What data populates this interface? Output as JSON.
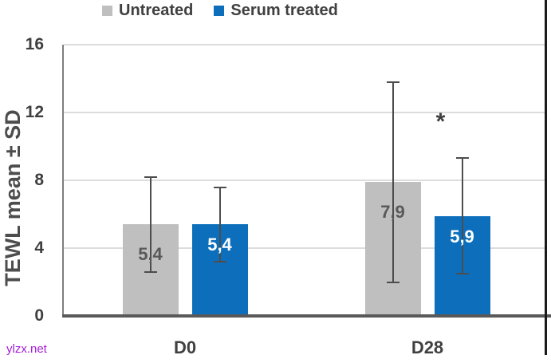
{
  "watermark": {
    "text": "ylzx.net"
  },
  "colors": {
    "untreated_bar": "#BFBFBF",
    "treated_bar": "#0D6FBC",
    "grid": "#DCDCDC",
    "axis_line": "#595959",
    "y_axis_line": "#7F7F7F",
    "error_bar": "#4D4D4D",
    "text_dark": "#404040",
    "value_label_on_gray": "#595959",
    "value_label_on_blue": "#FFFFFF",
    "watermark": "#A41DD6",
    "frame_line": "#1A1A1A"
  },
  "chart_data": {
    "type": "bar",
    "title": "",
    "xlabel": "",
    "ylabel": "TEWL mean ± SD",
    "ylim": [
      0,
      16
    ],
    "yticks": [
      0,
      4,
      8,
      12,
      16
    ],
    "grid": true,
    "legend_position": "top",
    "categories": [
      "D0",
      "D28"
    ],
    "series": [
      {
        "name": "Untreated",
        "values": [
          5.4,
          7.9
        ],
        "value_labels": [
          "5,4",
          "7,9"
        ],
        "sd": [
          2.8,
          5.9
        ]
      },
      {
        "name": "Serum treated",
        "values": [
          5.4,
          5.9
        ],
        "value_labels": [
          "5,4",
          "5,9"
        ],
        "sd": [
          2.2,
          3.4
        ]
      }
    ],
    "annotations": [
      {
        "text": "*",
        "category": "D28",
        "series": "Serum treated"
      }
    ]
  }
}
